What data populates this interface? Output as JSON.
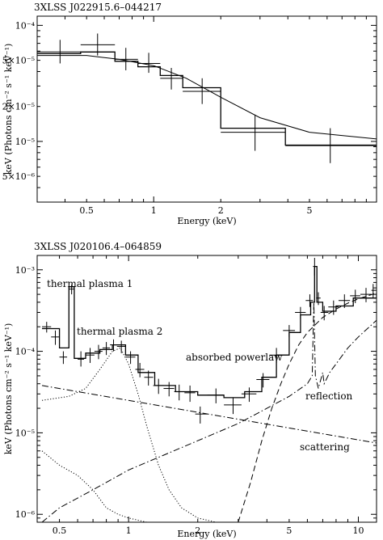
{
  "chart_data": [
    {
      "type": "scatter",
      "title": "3XLSS J022915.6–044217",
      "xlabel": "Energy (keV)",
      "ylabel": "keV (Photons cm⁻² s⁻¹ keV⁻¹)",
      "xscale": "log",
      "yscale": "log",
      "xlim": [
        0.3,
        10
      ],
      "ylim": [
        3e-06,
        0.00012
      ],
      "xticks": [
        {
          "value": 0.5,
          "label": "0.5"
        },
        {
          "value": 1,
          "label": "1"
        },
        {
          "value": 2,
          "label": "2"
        },
        {
          "value": 5,
          "label": "5"
        }
      ],
      "yticks": [
        {
          "value": 0.0001,
          "label": "10⁻⁴"
        },
        {
          "value": 5e-05,
          "label": "5×10⁻⁵"
        },
        {
          "value": 2e-05,
          "label": "2×10⁻⁵"
        },
        {
          "value": 1e-05,
          "label": "10⁻⁵"
        },
        {
          "value": 5e-06,
          "label": "5×10⁻⁶"
        }
      ],
      "data_points": [
        {
          "x": 0.38,
          "y": 5.9e-05,
          "xlo": 0.3,
          "xhi": 0.47,
          "ylo": 4.7e-05,
          "yhi": 7.5e-05
        },
        {
          "x": 0.56,
          "y": 6.8e-05,
          "xlo": 0.47,
          "xhi": 0.67,
          "ylo": 5.5e-05,
          "yhi": 8.5e-05
        },
        {
          "x": 0.75,
          "y": 5.1e-05,
          "xlo": 0.67,
          "xhi": 0.85,
          "ylo": 4.1e-05,
          "yhi": 6.4e-05
        },
        {
          "x": 0.95,
          "y": 4.7e-05,
          "xlo": 0.85,
          "xhi": 1.07,
          "ylo": 3.9e-05,
          "yhi": 5.8e-05
        },
        {
          "x": 1.2,
          "y": 3.5e-05,
          "xlo": 1.07,
          "xhi": 1.35,
          "ylo": 2.8e-05,
          "yhi": 4.3e-05
        },
        {
          "x": 1.65,
          "y": 2.7e-05,
          "xlo": 1.35,
          "xhi": 2.0,
          "ylo": 2.1e-05,
          "yhi": 3.5e-05
        },
        {
          "x": 2.85,
          "y": 1.2e-05,
          "xlo": 2.0,
          "xhi": 3.9,
          "ylo": 8.3e-06,
          "yhi": 1.7e-05
        },
        {
          "x": 6.2,
          "y": 9.2e-06,
          "xlo": 3.9,
          "xhi": 10,
          "ylo": 6.5e-06,
          "yhi": 1.3e-05
        }
      ],
      "models": [
        {
          "name": "model",
          "style": "step",
          "edges": [
            0.3,
            0.47,
            0.67,
            0.85,
            1.07,
            1.35,
            2.0,
            3.9,
            10
          ],
          "values": [
            5.7e-05,
            5.9e-05,
            4.9e-05,
            4.4e-05,
            3.7e-05,
            2.9e-05,
            1.3e-05,
            9.3e-06
          ]
        },
        {
          "name": "model-smooth",
          "style": "line",
          "x": [
            0.3,
            0.5,
            0.7,
            1.0,
            1.4,
            2.0,
            3.0,
            5.0,
            10
          ],
          "y": [
            5.5e-05,
            5.5e-05,
            5.1e-05,
            4.5e-05,
            3.5e-05,
            2.4e-05,
            1.6e-05,
            1.2e-05,
            1.05e-05
          ]
        }
      ],
      "annotations": []
    },
    {
      "type": "scatter",
      "title": "3XLSS J020106.4–064859",
      "xlabel": "Energy (keV)",
      "ylabel": "keV (Photons cm⁻² s⁻¹ keV⁻¹)",
      "xscale": "log",
      "yscale": "log",
      "xlim": [
        0.4,
        12
      ],
      "ylim": [
        8e-07,
        0.0015
      ],
      "xticks": [
        {
          "value": 0.5,
          "label": "0.5"
        },
        {
          "value": 1,
          "label": "1"
        },
        {
          "value": 2,
          "label": "2"
        },
        {
          "value": 5,
          "label": "5"
        },
        {
          "value": 10,
          "label": "10"
        }
      ],
      "yticks": [
        {
          "value": 0.001,
          "label": "10⁻³"
        },
        {
          "value": 0.0001,
          "label": "10⁻⁴"
        },
        {
          "value": 1e-05,
          "label": "10⁻⁵"
        },
        {
          "value": 1e-06,
          "label": "10⁻⁶"
        }
      ],
      "data_points": [
        {
          "x": 0.44,
          "y": 0.0002,
          "xlo": 0.42,
          "xhi": 0.46,
          "ylo": 0.00017,
          "yhi": 0.00023
        },
        {
          "x": 0.48,
          "y": 0.00015,
          "xlo": 0.46,
          "xhi": 0.5,
          "ylo": 0.00012,
          "yhi": 0.00018
        },
        {
          "x": 0.52,
          "y": 8.5e-05,
          "xlo": 0.5,
          "xhi": 0.54,
          "ylo": 7e-05,
          "yhi": 0.0001
        },
        {
          "x": 0.565,
          "y": 0.00058,
          "xlo": 0.55,
          "xhi": 0.58,
          "ylo": 0.0005,
          "yhi": 0.00066
        },
        {
          "x": 0.62,
          "y": 8e-05,
          "xlo": 0.6,
          "xhi": 0.64,
          "ylo": 6.5e-05,
          "yhi": 0.0001
        },
        {
          "x": 0.68,
          "y": 9e-05,
          "xlo": 0.65,
          "xhi": 0.71,
          "ylo": 7.2e-05,
          "yhi": 0.00011
        },
        {
          "x": 0.74,
          "y": 0.0001,
          "xlo": 0.71,
          "xhi": 0.77,
          "ylo": 8e-05,
          "yhi": 0.00012
        },
        {
          "x": 0.8,
          "y": 0.00011,
          "xlo": 0.77,
          "xhi": 0.83,
          "ylo": 9e-05,
          "yhi": 0.00013
        },
        {
          "x": 0.86,
          "y": 0.00012,
          "xlo": 0.83,
          "xhi": 0.89,
          "ylo": 0.0001,
          "yhi": 0.00014
        },
        {
          "x": 0.93,
          "y": 0.000115,
          "xlo": 0.89,
          "xhi": 0.97,
          "ylo": 9.5e-05,
          "yhi": 0.000135
        },
        {
          "x": 1.02,
          "y": 8.5e-05,
          "xlo": 0.97,
          "xhi": 1.07,
          "ylo": 7e-05,
          "yhi": 0.0001
        },
        {
          "x": 1.12,
          "y": 6e-05,
          "xlo": 1.07,
          "xhi": 1.17,
          "ylo": 4.8e-05,
          "yhi": 7.2e-05
        },
        {
          "x": 1.22,
          "y": 4.8e-05,
          "xlo": 1.17,
          "xhi": 1.28,
          "ylo": 3.8e-05,
          "yhi": 5.8e-05
        },
        {
          "x": 1.35,
          "y": 3.8e-05,
          "xlo": 1.28,
          "xhi": 1.42,
          "ylo": 3e-05,
          "yhi": 4.6e-05
        },
        {
          "x": 1.5,
          "y": 3.5e-05,
          "xlo": 1.42,
          "xhi": 1.58,
          "ylo": 2.8e-05,
          "yhi": 4.2e-05
        },
        {
          "x": 1.66,
          "y": 3.2e-05,
          "xlo": 1.58,
          "xhi": 1.75,
          "ylo": 2.5e-05,
          "yhi": 3.9e-05
        },
        {
          "x": 1.85,
          "y": 3.1e-05,
          "xlo": 1.75,
          "xhi": 1.95,
          "ylo": 2.4e-05,
          "yhi": 3.8e-05
        },
        {
          "x": 2.05,
          "y": 1.7e-05,
          "xlo": 1.95,
          "xhi": 2.2,
          "ylo": 1.3e-05,
          "yhi": 2.1e-05
        },
        {
          "x": 2.4,
          "y": 2.9e-05,
          "xlo": 2.2,
          "xhi": 2.6,
          "ylo": 2.3e-05,
          "yhi": 3.5e-05
        },
        {
          "x": 2.85,
          "y": 2.2e-05,
          "xlo": 2.6,
          "xhi": 3.1,
          "ylo": 1.7e-05,
          "yhi": 2.7e-05
        },
        {
          "x": 3.35,
          "y": 3e-05,
          "xlo": 3.1,
          "xhi": 3.6,
          "ylo": 2.4e-05,
          "yhi": 3.6e-05
        },
        {
          "x": 3.85,
          "y": 4.5e-05,
          "xlo": 3.6,
          "xhi": 4.1,
          "ylo": 3.6e-05,
          "yhi": 5.4e-05
        },
        {
          "x": 4.4,
          "y": 9e-05,
          "xlo": 4.1,
          "xhi": 4.7,
          "ylo": 7.2e-05,
          "yhi": 0.00011
        },
        {
          "x": 5.0,
          "y": 0.00018,
          "xlo": 4.7,
          "xhi": 5.3,
          "ylo": 0.00015,
          "yhi": 0.00021
        },
        {
          "x": 5.6,
          "y": 0.0003,
          "xlo": 5.3,
          "xhi": 5.9,
          "ylo": 0.00025,
          "yhi": 0.00035
        },
        {
          "x": 6.15,
          "y": 0.00042,
          "xlo": 5.9,
          "xhi": 6.35,
          "ylo": 0.00035,
          "yhi": 0.0005
        },
        {
          "x": 6.45,
          "y": 0.0011,
          "xlo": 6.35,
          "xhi": 6.55,
          "ylo": 0.00085,
          "yhi": 0.0014
        },
        {
          "x": 6.7,
          "y": 0.00045,
          "xlo": 6.55,
          "xhi": 6.85,
          "ylo": 0.00037,
          "yhi": 0.00053
        },
        {
          "x": 7.1,
          "y": 0.0003,
          "xlo": 6.85,
          "xhi": 7.4,
          "ylo": 0.00024,
          "yhi": 0.00036
        },
        {
          "x": 7.8,
          "y": 0.00035,
          "xlo": 7.4,
          "xhi": 8.2,
          "ylo": 0.00028,
          "yhi": 0.00042
        },
        {
          "x": 8.7,
          "y": 0.00042,
          "xlo": 8.2,
          "xhi": 9.2,
          "ylo": 0.00034,
          "yhi": 0.0005
        },
        {
          "x": 9.7,
          "y": 0.00048,
          "xlo": 9.2,
          "xhi": 10.2,
          "ylo": 0.00039,
          "yhi": 0.00057
        },
        {
          "x": 10.8,
          "y": 0.0005,
          "xlo": 10.2,
          "xhi": 11.4,
          "ylo": 0.0004,
          "yhi": 0.0006
        },
        {
          "x": 11.6,
          "y": 0.00056,
          "xlo": 11.4,
          "xhi": 12,
          "ylo": 0.00045,
          "yhi": 0.00067
        }
      ],
      "models": [
        {
          "name": "total-model",
          "style": "step",
          "edges": [
            0.42,
            0.5,
            0.55,
            0.58,
            0.65,
            0.75,
            0.85,
            0.97,
            1.1,
            1.3,
            1.6,
            2.0,
            2.6,
            3.2,
            3.8,
            4.4,
            5.0,
            5.6,
            6.2,
            6.45,
            6.6,
            7.0,
            8.0,
            9.5,
            12
          ],
          "values": [
            0.00019,
            0.00011,
            0.00062,
            8.2e-05,
            9.5e-05,
            0.000105,
            0.00012,
            9e-05,
            5.5e-05,
            3.8e-05,
            3.2e-05,
            2.9e-05,
            2.7e-05,
            3.2e-05,
            4.8e-05,
            9e-05,
            0.00017,
            0.00028,
            0.0004,
            0.0011,
            0.0004,
            0.00031,
            0.00036,
            0.00045,
            0.00052
          ]
        },
        {
          "name": "thermal plasma 2",
          "style": "dotted",
          "x": [
            0.42,
            0.55,
            0.65,
            0.75,
            0.85,
            0.92,
            1.0,
            1.1,
            1.2,
            1.35,
            1.5,
            1.7,
            2.0,
            2.4,
            3.0
          ],
          "y": [
            2.5e-05,
            2.8e-05,
            3.5e-05,
            6e-05,
            0.0001,
            0.00011,
            7e-05,
            3e-05,
            1.2e-05,
            4e-06,
            2e-06,
            1.2e-06,
            9e-07,
            8e-07,
            8e-07
          ]
        },
        {
          "name": "thermal plasma 1",
          "style": "dotted",
          "x": [
            0.42,
            0.5,
            0.6,
            0.7,
            0.8,
            0.9,
            1.0,
            1.2,
            1.5
          ],
          "y": [
            6e-06,
            4e-06,
            3e-06,
            2e-06,
            1.2e-06,
            1e-06,
            9e-07,
            8e-07,
            8e-07
          ]
        },
        {
          "name": "absorbed powerlaw",
          "style": "dashed",
          "x": [
            3.0,
            3.4,
            3.8,
            4.2,
            4.6,
            5.0,
            5.5,
            6.0,
            7.0,
            8.0,
            9.0,
            10,
            11,
            12
          ],
          "y": [
            8e-07,
            2.5e-06,
            8e-06,
            2e-05,
            4e-05,
            7e-05,
            0.00012,
            0.00017,
            0.00026,
            0.00033,
            0.00039,
            0.00044,
            0.00048,
            0.00052
          ]
        },
        {
          "name": "reflection",
          "style": "dashdot",
          "x": [
            0.42,
            0.5,
            0.7,
            1.0,
            2.0,
            3.0,
            4.0,
            5.0,
            6.0,
            6.3,
            6.4,
            6.5,
            6.7,
            7.0,
            7.1,
            7.5,
            8.0,
            9.0,
            10,
            12
          ],
          "y": [
            8e-07,
            1.2e-06,
            2e-06,
            3.5e-06,
            8e-06,
            1.3e-05,
            2e-05,
            2.8e-05,
            4e-05,
            5e-05,
            0.0004,
            5e-05,
            3.5e-05,
            5.5e-05,
            4e-05,
            5.5e-05,
            7e-05,
            0.00011,
            0.00015,
            0.00024
          ]
        },
        {
          "name": "scattering",
          "style": "dashdot",
          "x": [
            0.42,
            12
          ],
          "y": [
            3.8e-05,
            7.5e-06
          ]
        }
      ],
      "annotations": [
        {
          "text": "thermal plasma 1"
        },
        {
          "text": "thermal plasma 2"
        },
        {
          "text": "absorbed powerlaw"
        },
        {
          "text": "reflection"
        },
        {
          "text": "scattering"
        }
      ]
    }
  ]
}
